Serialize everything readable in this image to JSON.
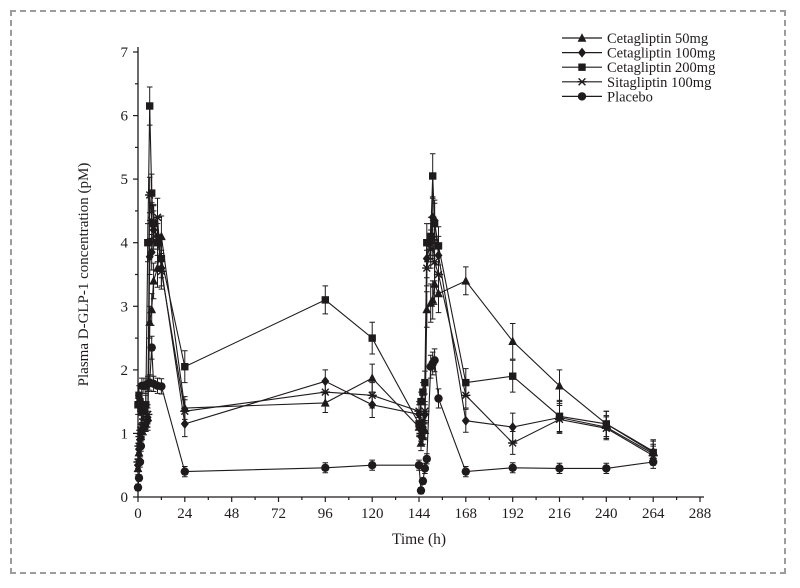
{
  "figure": {
    "background": "#ffffff",
    "frame_color": "#9c9c9c",
    "ink_color": "#1f1b1c"
  },
  "chart_data": {
    "type": "line",
    "title": "",
    "xlabel": "Time (h)",
    "ylabel": "Plasma D-GLP-1 concentration (pM)",
    "xlim": [
      0,
      288
    ],
    "ylim": [
      0,
      7
    ],
    "x_ticks": [
      0,
      24,
      48,
      72,
      96,
      120,
      144,
      168,
      192,
      216,
      240,
      264,
      288
    ],
    "y_ticks": [
      0,
      1,
      2,
      3,
      4,
      5,
      6,
      7
    ],
    "x_minor_step": 12,
    "y_minor_step": 0.5,
    "grid": false,
    "legend_position": "top-right",
    "error_bars": true,
    "series": [
      {
        "name": "Cetagliptin 50mg",
        "marker": "triangle",
        "x": [
          0,
          0.5,
          1,
          1.5,
          2,
          3,
          4,
          5,
          6,
          7,
          8,
          10,
          12,
          24,
          96,
          120,
          144,
          145,
          146,
          147,
          148,
          150,
          151,
          152,
          154,
          168,
          192,
          216,
          240,
          264
        ],
        "y": [
          0.45,
          0.7,
          0.85,
          0.95,
          1.05,
          1.1,
          1.15,
          1.25,
          2.75,
          2.95,
          3.4,
          3.6,
          4.1,
          1.4,
          1.48,
          1.87,
          1.1,
          0.85,
          0.95,
          1.05,
          2.95,
          3.05,
          3.1,
          3.35,
          3.2,
          3.4,
          2.45,
          1.75,
          1.15,
          0.72
        ],
        "err": [
          0.1,
          0.1,
          0.1,
          0.1,
          0.12,
          0.12,
          0.12,
          0.15,
          0.25,
          0.25,
          0.28,
          0.3,
          0.32,
          0.18,
          0.15,
          0.22,
          0.15,
          0.12,
          0.12,
          0.12,
          0.28,
          0.3,
          0.3,
          0.32,
          0.3,
          0.22,
          0.28,
          0.25,
          0.2,
          0.18
        ]
      },
      {
        "name": "Cetagliptin 100mg",
        "marker": "diamond",
        "x": [
          0,
          0.5,
          1,
          1.5,
          2,
          3,
          4,
          5,
          6,
          7,
          8,
          10,
          12,
          24,
          96,
          120,
          144,
          145,
          146,
          147,
          148,
          150,
          151,
          152,
          154,
          168,
          192,
          216,
          240,
          264
        ],
        "y": [
          0.5,
          0.75,
          0.9,
          1.0,
          1.05,
          1.1,
          1.15,
          1.2,
          3.78,
          3.85,
          4.2,
          4.1,
          3.6,
          1.15,
          1.82,
          1.45,
          1.3,
          0.95,
          1.1,
          1.3,
          3.75,
          4.0,
          4.4,
          4.35,
          3.8,
          1.2,
          1.1,
          1.25,
          1.1,
          0.68
        ],
        "err": [
          0.1,
          0.1,
          0.1,
          0.1,
          0.12,
          0.12,
          0.12,
          0.15,
          0.28,
          0.28,
          0.3,
          0.3,
          0.28,
          0.2,
          0.18,
          0.2,
          0.15,
          0.12,
          0.12,
          0.15,
          0.3,
          0.3,
          0.32,
          0.32,
          0.3,
          0.18,
          0.22,
          0.22,
          0.18,
          0.15
        ]
      },
      {
        "name": "Cetagliptin 200mg",
        "marker": "square",
        "x": [
          0,
          0.5,
          1,
          1.5,
          2,
          3,
          4,
          5,
          6,
          7,
          8,
          10,
          12,
          24,
          96,
          120,
          144,
          145,
          146,
          147,
          148,
          150,
          151,
          152,
          154,
          168,
          192,
          216,
          240,
          264
        ],
        "y": [
          1.45,
          1.6,
          1.5,
          1.4,
          1.35,
          1.38,
          1.45,
          4.0,
          6.15,
          4.78,
          4.3,
          4.0,
          3.75,
          2.05,
          3.1,
          2.5,
          1.15,
          1.5,
          1.65,
          1.8,
          4.0,
          4.1,
          5.05,
          4.3,
          3.95,
          1.8,
          1.9,
          1.27,
          1.15,
          0.7
        ],
        "err": [
          0.15,
          0.15,
          0.15,
          0.12,
          0.12,
          0.12,
          0.15,
          0.3,
          0.3,
          0.3,
          0.3,
          0.3,
          0.3,
          0.25,
          0.22,
          0.25,
          0.18,
          0.15,
          0.15,
          0.18,
          0.3,
          0.3,
          0.35,
          0.32,
          0.3,
          0.22,
          0.25,
          0.25,
          0.2,
          0.18
        ]
      },
      {
        "name": "Sitagliptin 100mg",
        "marker": "star",
        "x": [
          0,
          0.5,
          1,
          1.5,
          2,
          3,
          4,
          5,
          6,
          7,
          8,
          10,
          12,
          24,
          96,
          120,
          144,
          145,
          146,
          147,
          148,
          150,
          151,
          152,
          154,
          168,
          192,
          216,
          240,
          264
        ],
        "y": [
          0.55,
          0.8,
          0.95,
          1.05,
          1.1,
          1.15,
          1.2,
          1.3,
          4.75,
          4.35,
          4.3,
          4.4,
          3.55,
          1.35,
          1.65,
          1.6,
          1.35,
          1.0,
          1.2,
          1.35,
          3.6,
          3.9,
          4.05,
          3.7,
          3.5,
          1.6,
          0.85,
          1.22,
          1.08,
          0.65
        ],
        "err": [
          0.1,
          0.1,
          0.1,
          0.1,
          0.12,
          0.12,
          0.12,
          0.15,
          0.28,
          0.28,
          0.28,
          0.3,
          0.28,
          0.18,
          0.18,
          0.2,
          0.15,
          0.12,
          0.12,
          0.15,
          0.28,
          0.3,
          0.3,
          0.3,
          0.28,
          0.2,
          0.18,
          0.22,
          0.18,
          0.15
        ]
      },
      {
        "name": "Placebo",
        "marker": "circle",
        "x": [
          0,
          0.5,
          1,
          1.5,
          2,
          3,
          4,
          5,
          6,
          7,
          8,
          10,
          12,
          24,
          96,
          120,
          144,
          145,
          146,
          147,
          148,
          150,
          151,
          152,
          154,
          168,
          192,
          216,
          240,
          264
        ],
        "y": [
          0.15,
          0.3,
          0.55,
          0.8,
          1.75,
          1.75,
          1.75,
          1.78,
          1.8,
          2.35,
          1.78,
          1.75,
          1.74,
          0.4,
          0.46,
          0.5,
          0.5,
          0.1,
          0.25,
          0.45,
          0.6,
          2.05,
          2.1,
          2.15,
          1.55,
          0.4,
          0.46,
          0.45,
          0.45,
          0.55
        ],
        "err": [
          0.05,
          0.05,
          0.08,
          0.08,
          0.12,
          0.12,
          0.12,
          0.12,
          0.12,
          0.18,
          0.12,
          0.12,
          0.12,
          0.08,
          0.08,
          0.08,
          0.08,
          0.05,
          0.05,
          0.08,
          0.08,
          0.18,
          0.18,
          0.18,
          0.15,
          0.08,
          0.08,
          0.08,
          0.08,
          0.1
        ]
      }
    ]
  }
}
